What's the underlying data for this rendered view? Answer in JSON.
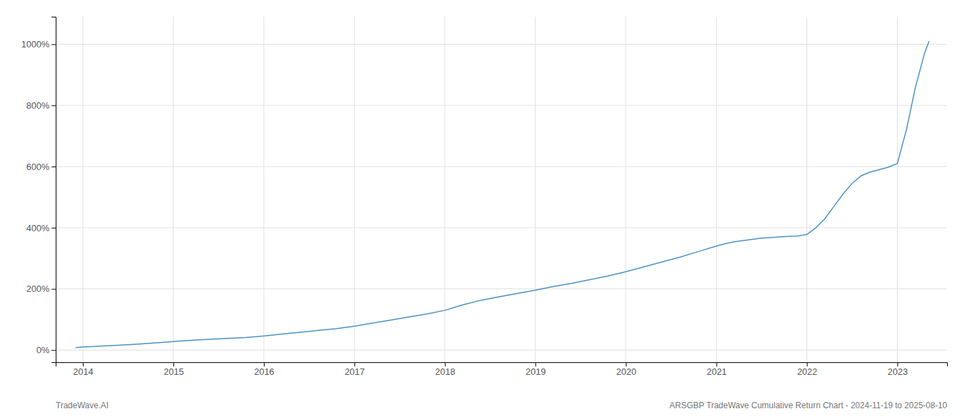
{
  "chart_data": {
    "type": "line",
    "annotations": [
      "TradeWave.AI",
      "ARSGBP TradeWave Cumulative Return Chart - 2024-11-19 to 2025-08-10"
    ],
    "x": [
      2013.92,
      2014.0,
      2014.1,
      2014.2,
      2014.4,
      2014.6,
      2014.8,
      2015.0,
      2015.2,
      2015.4,
      2015.6,
      2015.8,
      2016.0,
      2016.2,
      2016.4,
      2016.6,
      2016.8,
      2017.0,
      2017.2,
      2017.4,
      2017.6,
      2017.8,
      2018.0,
      2018.2,
      2018.4,
      2018.6,
      2018.8,
      2019.0,
      2019.2,
      2019.4,
      2019.6,
      2019.8,
      2020.0,
      2020.2,
      2020.4,
      2020.6,
      2020.8,
      2021.0,
      2021.1,
      2021.2,
      2021.3,
      2021.4,
      2021.5,
      2021.6,
      2021.7,
      2021.8,
      2021.9,
      2022.0,
      2022.1,
      2022.2,
      2022.3,
      2022.4,
      2022.5,
      2022.6,
      2022.7,
      2022.8,
      2022.9,
      2023.0,
      2023.1,
      2023.2,
      2023.3,
      2023.35
    ],
    "values": [
      8,
      10,
      11,
      13,
      16,
      19,
      23,
      28,
      32,
      35,
      38,
      41,
      46,
      52,
      58,
      64,
      70,
      78,
      88,
      98,
      108,
      118,
      130,
      148,
      163,
      174,
      185,
      196,
      208,
      218,
      230,
      242,
      256,
      272,
      288,
      304,
      322,
      340,
      348,
      354,
      358,
      362,
      366,
      368,
      370,
      372,
      373,
      378,
      400,
      430,
      470,
      510,
      545,
      570,
      582,
      590,
      598,
      610,
      720,
      860,
      970,
      1010
    ],
    "color": "#4a90c4",
    "xlim": [
      2013.7,
      2023.55
    ],
    "ylim": [
      -40,
      1090
    ],
    "xticks": [
      2014,
      2015,
      2016,
      2017,
      2018,
      2019,
      2020,
      2021,
      2022,
      2023
    ],
    "yticks": [
      {
        "value": 0,
        "label": "0%"
      },
      {
        "value": 200,
        "label": "200%"
      },
      {
        "value": 400,
        "label": "400%"
      },
      {
        "value": 600,
        "label": "600%"
      },
      {
        "value": 800,
        "label": "800%"
      },
      {
        "value": 1000,
        "label": "1000%"
      }
    ],
    "grid": true
  }
}
